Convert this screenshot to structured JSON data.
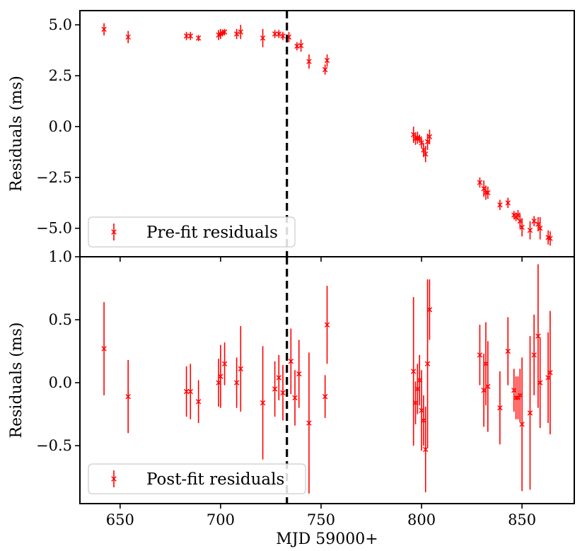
{
  "chart_data": [
    {
      "type": "scatter",
      "panel": "top",
      "ylabel": "Residuals (ms)",
      "xlabel": "",
      "xlim": [
        630,
        876
      ],
      "ylim": [
        -6.4,
        5.7
      ],
      "yticks": [
        5.0,
        2.5,
        0.0,
        -2.5,
        -5.0
      ],
      "ytick_labels": [
        "5.0",
        "2.5",
        "0.0",
        "−2.5",
        "−5.0"
      ],
      "xticks": [
        650,
        700,
        750,
        800,
        850
      ],
      "show_xtick_labels": false,
      "vline_x": 733,
      "legend_location": "lower left",
      "color": "#ff0000",
      "series": [
        {
          "name": "Pre-fit residuals",
          "x": [
            642,
            654,
            683,
            685,
            689,
            699,
            700,
            701,
            702,
            708,
            710,
            721,
            727,
            729,
            731,
            734,
            738,
            740,
            744,
            752,
            753,
            796,
            797,
            798,
            799,
            800,
            801,
            802,
            803,
            804,
            829,
            831,
            832,
            833,
            839,
            843,
            846,
            847,
            848,
            849,
            850,
            854,
            856,
            858,
            859,
            863,
            864
          ],
          "y": [
            4.78,
            4.4,
            4.45,
            4.45,
            4.35,
            4.5,
            4.55,
            4.6,
            4.65,
            4.55,
            4.65,
            4.35,
            4.55,
            4.55,
            4.45,
            4.4,
            3.95,
            3.98,
            3.2,
            2.8,
            3.25,
            -0.4,
            -0.6,
            -0.55,
            -0.6,
            -0.8,
            -1.15,
            -1.35,
            -0.75,
            -0.5,
            -2.75,
            -3.05,
            -3.25,
            -3.25,
            -3.85,
            -3.75,
            -4.35,
            -4.45,
            -4.35,
            -4.65,
            -4.95,
            -5.1,
            -4.65,
            -4.8,
            -5.0,
            -5.45,
            -5.5
          ],
          "err": [
            0.3,
            0.3,
            0.2,
            0.2,
            0.15,
            0.25,
            0.25,
            0.15,
            0.15,
            0.25,
            0.35,
            0.45,
            0.2,
            0.2,
            0.2,
            0.25,
            0.2,
            0.3,
            0.35,
            0.25,
            0.3,
            0.4,
            0.3,
            0.3,
            0.2,
            0.25,
            0.35,
            0.4,
            0.4,
            0.35,
            0.25,
            0.4,
            0.35,
            0.3,
            0.25,
            0.25,
            0.2,
            0.2,
            0.25,
            0.35,
            0.45,
            0.45,
            0.25,
            0.35,
            0.55,
            0.35,
            0.35
          ]
        }
      ]
    },
    {
      "type": "scatter",
      "panel": "bottom",
      "ylabel": "Residuals (ms)",
      "xlabel": "MJD 59000+",
      "xlim": [
        630,
        876
      ],
      "ylim": [
        -0.96,
        1.0
      ],
      "yticks": [
        1.0,
        0.5,
        0.0,
        -0.5
      ],
      "ytick_labels": [
        "1.0",
        "0.5",
        "0.0",
        "−0.5"
      ],
      "xticks": [
        650,
        700,
        750,
        800,
        850
      ],
      "xtick_labels": [
        "650",
        "700",
        "750",
        "800",
        "850"
      ],
      "vline_x": 733,
      "legend_location": "lower left",
      "color": "#ff0000",
      "series": [
        {
          "name": "Post-fit residuals",
          "x": [
            642,
            654,
            683,
            685,
            689,
            699,
            700,
            702,
            708,
            710,
            721,
            727,
            729,
            731,
            735,
            737,
            739,
            744,
            752,
            753,
            796,
            797,
            798,
            799,
            800,
            801,
            802,
            803,
            804,
            829,
            831,
            832,
            833,
            839,
            843,
            846,
            847,
            848,
            849,
            850,
            854,
            856,
            858,
            859,
            863,
            864
          ],
          "y": [
            0.27,
            -0.11,
            -0.07,
            -0.07,
            -0.15,
            0.0,
            0.05,
            0.15,
            0.0,
            0.11,
            -0.16,
            -0.05,
            0.04,
            -0.08,
            0.17,
            -0.12,
            0.07,
            -0.32,
            -0.11,
            0.46,
            0.09,
            -0.16,
            -0.05,
            0.02,
            -0.22,
            -0.3,
            -0.53,
            0.15,
            0.58,
            0.22,
            -0.06,
            0.15,
            -0.03,
            -0.2,
            0.25,
            -0.06,
            -0.12,
            -0.12,
            -0.1,
            -0.33,
            -0.24,
            0.22,
            0.37,
            0.0,
            0.04,
            0.08
          ],
          "err": [
            0.37,
            0.29,
            0.2,
            0.22,
            0.17,
            0.19,
            0.25,
            0.17,
            0.2,
            0.34,
            0.45,
            0.22,
            0.18,
            0.22,
            0.26,
            0.22,
            0.27,
            0.56,
            0.17,
            0.31,
            0.59,
            0.17,
            0.2,
            0.2,
            0.32,
            0.2,
            0.34,
            0.67,
            0.24,
            0.24,
            0.29,
            0.33,
            0.36,
            0.29,
            0.27,
            0.17,
            0.17,
            0.17,
            0.21,
            0.53,
            0.61,
            0.32,
            0.57,
            0.36,
            0.36,
            0.49
          ]
        }
      ]
    }
  ]
}
